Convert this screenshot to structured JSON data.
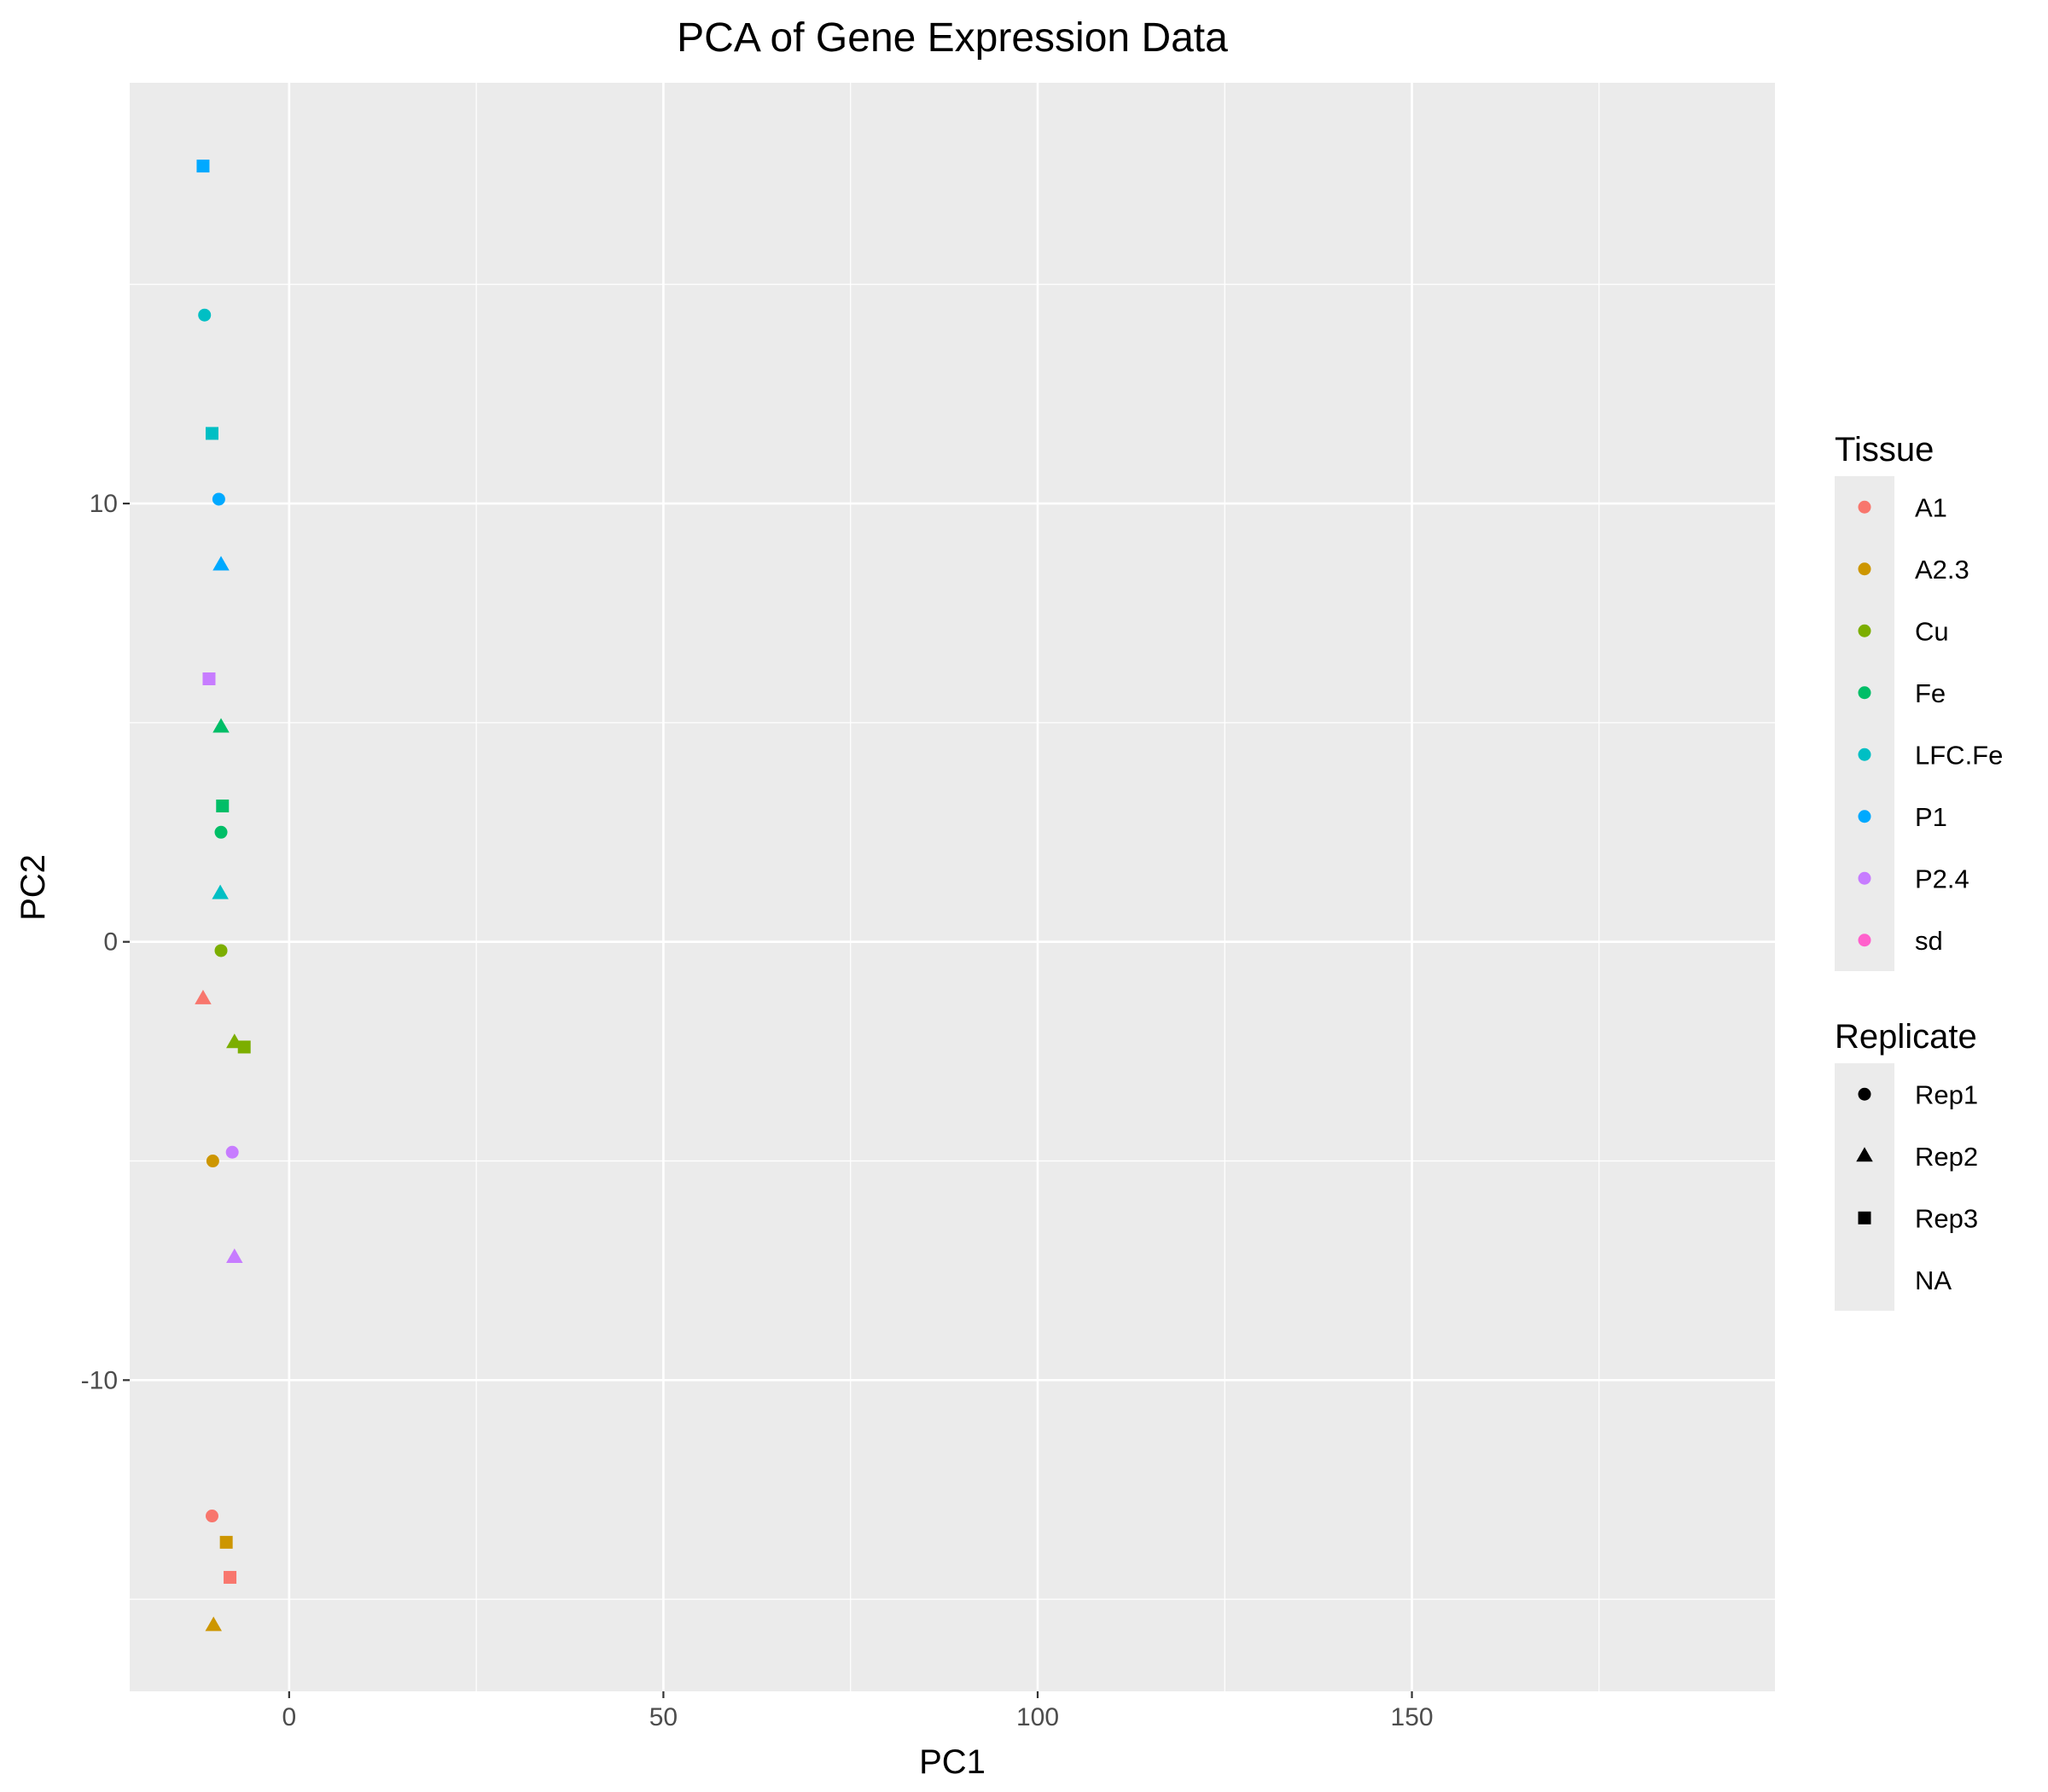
{
  "chart_data": {
    "type": "scatter",
    "title": "PCA of Gene Expression Data",
    "xlabel": "PC1",
    "ylabel": "PC2",
    "xlim": [
      -21.3,
      198.5
    ],
    "ylim": [
      -17.1,
      19.6
    ],
    "x_ticks": [
      0,
      50,
      100,
      150
    ],
    "x_tick_labels": [
      "0",
      "50",
      "100",
      "150"
    ],
    "y_ticks": [
      -10,
      0,
      10
    ],
    "y_tick_labels": [
      "-10",
      "0",
      "10"
    ],
    "grid": true,
    "legend_position": "right",
    "colors": {
      "panel": "#EBEBEB",
      "grid": "#FFFFFF",
      "A1": "#F8766D",
      "A2.3": "#CD9600",
      "Cu": "#7CAE00",
      "Fe": "#00BE67",
      "LFC.Fe": "#00BFC4",
      "P1": "#00A9FF",
      "P2.4": "#C77CFF",
      "sd": "#FF61CC"
    },
    "legends": [
      {
        "title": "Tissue",
        "key": "color",
        "items": [
          {
            "label": "A1",
            "color": "#F8766D",
            "shape": "circle"
          },
          {
            "label": "A2.3",
            "color": "#CD9600",
            "shape": "circle"
          },
          {
            "label": "Cu",
            "color": "#7CAE00",
            "shape": "circle"
          },
          {
            "label": "Fe",
            "color": "#00BE67",
            "shape": "circle"
          },
          {
            "label": "LFC.Fe",
            "color": "#00BFC4",
            "shape": "circle"
          },
          {
            "label": "P1",
            "color": "#00A9FF",
            "shape": "circle"
          },
          {
            "label": "P2.4",
            "color": "#C77CFF",
            "shape": "circle"
          },
          {
            "label": "sd",
            "color": "#FF61CC",
            "shape": "circle"
          }
        ]
      },
      {
        "title": "Replicate",
        "key": "shape",
        "items": [
          {
            "label": "Rep1",
            "color": "#000000",
            "shape": "circle"
          },
          {
            "label": "Rep2",
            "color": "#000000",
            "shape": "triangle"
          },
          {
            "label": "Rep3",
            "color": "#000000",
            "shape": "square"
          },
          {
            "label": "NA",
            "color": "#000000",
            "shape": "none"
          }
        ]
      }
    ],
    "points": [
      {
        "tissue": "P1",
        "replicate": "Rep3",
        "x": -11.5,
        "y": 17.7
      },
      {
        "tissue": "LFC.Fe",
        "replicate": "Rep1",
        "x": -11.3,
        "y": 14.3
      },
      {
        "tissue": "LFC.Fe",
        "replicate": "Rep3",
        "x": -10.3,
        "y": 11.6
      },
      {
        "tissue": "P1",
        "replicate": "Rep1",
        "x": -9.4,
        "y": 10.1
      },
      {
        "tissue": "P1",
        "replicate": "Rep2",
        "x": -9.1,
        "y": 8.6
      },
      {
        "tissue": "P2.4",
        "replicate": "Rep3",
        "x": -10.7,
        "y": 6.0
      },
      {
        "tissue": "Fe",
        "replicate": "Rep2",
        "x": -9.1,
        "y": 4.9
      },
      {
        "tissue": "Fe",
        "replicate": "Rep3",
        "x": -8.9,
        "y": 3.1
      },
      {
        "tissue": "Fe",
        "replicate": "Rep1",
        "x": -9.1,
        "y": 2.5
      },
      {
        "tissue": "LFC.Fe",
        "replicate": "Rep2",
        "x": -9.2,
        "y": 1.1
      },
      {
        "tissue": "Cu",
        "replicate": "Rep1",
        "x": -9.1,
        "y": -0.2
      },
      {
        "tissue": "A1",
        "replicate": "Rep2",
        "x": -11.5,
        "y": -1.3
      },
      {
        "tissue": "Cu",
        "replicate": "Rep2",
        "x": -7.3,
        "y": -2.3
      },
      {
        "tissue": "Cu",
        "replicate": "Rep3",
        "x": -6.0,
        "y": -2.4
      },
      {
        "tissue": "P2.4",
        "replicate": "Rep1",
        "x": -7.6,
        "y": -4.8
      },
      {
        "tissue": "A2.3",
        "replicate": "Rep1",
        "x": -10.2,
        "y": -5.0
      },
      {
        "tissue": "P2.4",
        "replicate": "Rep2",
        "x": -7.3,
        "y": -7.2
      },
      {
        "tissue": "A1",
        "replicate": "Rep1",
        "x": -10.3,
        "y": -13.1
      },
      {
        "tissue": "A2.3",
        "replicate": "Rep3",
        "x": -8.4,
        "y": -13.7
      },
      {
        "tissue": "A1",
        "replicate": "Rep3",
        "x": -7.9,
        "y": -14.5
      },
      {
        "tissue": "A2.3",
        "replicate": "Rep2",
        "x": -10.1,
        "y": -15.6
      }
    ]
  }
}
